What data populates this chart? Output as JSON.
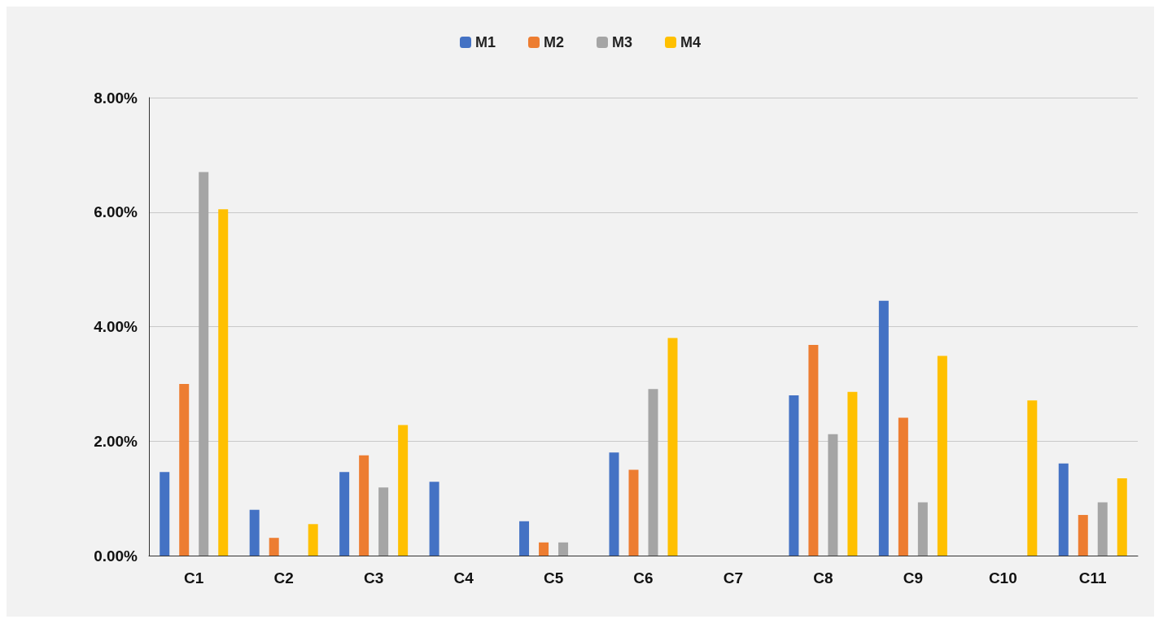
{
  "chart_data": {
    "type": "bar",
    "categories": [
      "C1",
      "C2",
      "C3",
      "C4",
      "C5",
      "C6",
      "C7",
      "C8",
      "C9",
      "C10",
      "C11"
    ],
    "series": [
      {
        "name": "M1",
        "color": "#4472c4",
        "values": [
          1.46,
          0.8,
          1.46,
          1.29,
          0.6,
          1.8,
          null,
          2.8,
          4.45,
          null,
          1.61
        ]
      },
      {
        "name": "M2",
        "color": "#ed7d31",
        "values": [
          3.0,
          0.31,
          1.75,
          null,
          0.23,
          1.5,
          null,
          3.68,
          2.41,
          null,
          0.71
        ]
      },
      {
        "name": "M3",
        "color": "#a5a5a5",
        "values": [
          6.7,
          null,
          1.19,
          null,
          0.23,
          2.91,
          null,
          2.12,
          0.93,
          null,
          0.93
        ]
      },
      {
        "name": "M4",
        "color": "#ffc000",
        "values": [
          6.05,
          0.55,
          2.28,
          null,
          null,
          3.8,
          null,
          2.86,
          3.49,
          2.71,
          1.35
        ]
      }
    ],
    "ylim": [
      0,
      8
    ],
    "yticks": [
      {
        "value": 0,
        "label": "0.00%"
      },
      {
        "value": 2,
        "label": "2.00%"
      },
      {
        "value": 4,
        "label": "4.00%"
      },
      {
        "value": 6,
        "label": "6.00%"
      },
      {
        "value": 8,
        "label": "8.00%"
      }
    ],
    "grid": "y",
    "legend": "top"
  }
}
